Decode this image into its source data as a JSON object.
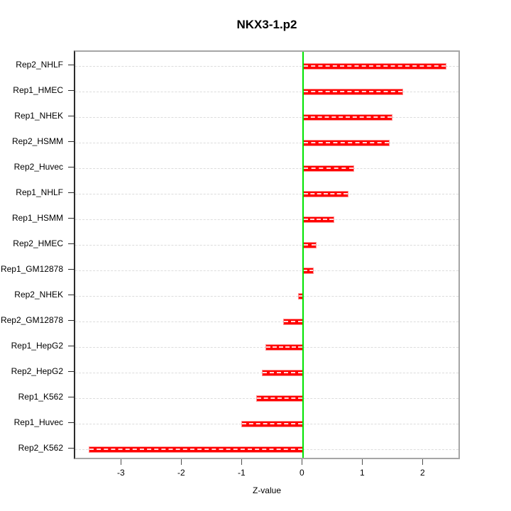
{
  "title": "NKX3-1.p2",
  "xlabel": "Z-value",
  "chart_data": {
    "type": "bar",
    "orientation": "horizontal",
    "title": "NKX3-1.p2",
    "xlabel": "Z-value",
    "ylabel": "",
    "grid": true,
    "categories": [
      "Rep2_NHLF",
      "Rep1_HMEC",
      "Rep1_NHEK",
      "Rep2_HSMM",
      "Rep2_Huvec",
      "Rep1_NHLF",
      "Rep1_HSMM",
      "Rep2_HMEC",
      "Rep1_GM12878",
      "Rep2_NHEK",
      "Rep2_GM12878",
      "Rep1_HepG2",
      "Rep2_HepG2",
      "Rep1_K562",
      "Rep1_Huvec",
      "Rep2_K562"
    ],
    "values": [
      2.37,
      1.65,
      1.48,
      1.43,
      0.84,
      0.75,
      0.51,
      0.22,
      0.17,
      -0.09,
      -0.33,
      -0.63,
      -0.69,
      -0.78,
      -1.03,
      -3.56
    ],
    "xlim": [
      -3.78,
      2.62
    ],
    "xticks": [
      -3,
      -2,
      -1,
      0,
      1,
      2
    ],
    "xtick_labels": [
      "-3",
      "-2",
      "-1",
      "0",
      "1",
      "2"
    ],
    "colors": {
      "bar_fill": "#ff0000",
      "bar_border": "#ff9090",
      "bar_center_dash": "#ffffff",
      "zero_line": "#00e300",
      "grid_line": "#dcdcdc",
      "box_border": "#a6a6a6",
      "axis_line": "#2b2b2b",
      "text": "#000000"
    }
  }
}
